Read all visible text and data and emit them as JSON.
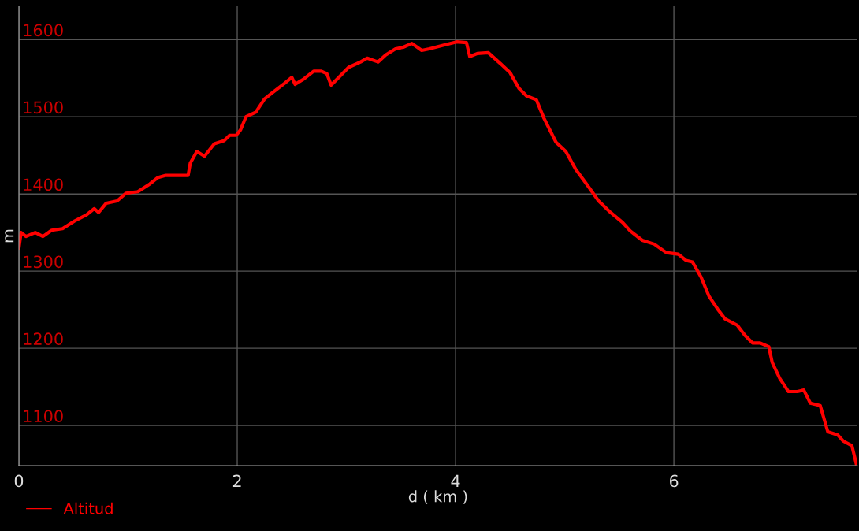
{
  "chart_data": {
    "type": "line",
    "xlabel": "d ( km )",
    "ylabel": "m",
    "xlim": [
      0,
      7.68
    ],
    "ylim": [
      1048,
      1643
    ],
    "xticks": [
      0,
      2,
      4,
      6
    ],
    "yticks": [
      1100,
      1200,
      1300,
      1400,
      1500,
      1600
    ],
    "grid": true,
    "legend": "bottom left",
    "marker": "none",
    "line_style": "solid",
    "series": [
      {
        "name": "Altitud",
        "color": "#ff0000",
        "x": [
          0,
          0.02,
          0.065,
          0.15,
          0.22,
          0.3,
          0.4,
          0.51,
          0.62,
          0.69,
          0.73,
          0.8,
          0.9,
          0.98,
          1.09,
          1.2,
          1.27,
          1.34,
          1.55,
          1.57,
          1.63,
          1.7,
          1.79,
          1.88,
          1.93,
          1.99,
          2.03,
          2.08,
          2.17,
          2.25,
          2.32,
          2.43,
          2.5,
          2.53,
          2.61,
          2.7,
          2.77,
          2.82,
          2.86,
          2.93,
          3.02,
          3.13,
          3.19,
          3.29,
          3.36,
          3.45,
          3.52,
          3.6,
          3.69,
          3.76,
          3.9,
          4.01,
          4.1,
          4.13,
          4.2,
          4.3,
          4.41,
          4.5,
          4.58,
          4.65,
          4.74,
          4.81,
          4.92,
          5.01,
          5.1,
          5.21,
          5.31,
          5.42,
          5.53,
          5.6,
          5.71,
          5.82,
          5.93,
          6.04,
          6.11,
          6.17,
          6.25,
          6.32,
          6.4,
          6.47,
          6.58,
          6.65,
          6.72,
          6.79,
          6.87,
          6.9,
          6.97,
          7.05,
          7.13,
          7.19,
          7.25,
          7.34,
          7.41,
          7.5,
          7.55,
          7.63,
          7.67
        ],
        "values": [
          1330,
          1350,
          1345,
          1350,
          1345,
          1353,
          1355,
          1365,
          1373,
          1381,
          1376,
          1388,
          1391,
          1401,
          1403,
          1413,
          1421,
          1424,
          1424,
          1440,
          1455,
          1449,
          1465,
          1469,
          1476,
          1476,
          1483,
          1500,
          1506,
          1523,
          1531,
          1543,
          1551,
          1542,
          1549,
          1559,
          1559,
          1556,
          1541,
          1551,
          1564,
          1571,
          1576,
          1571,
          1580,
          1588,
          1590,
          1595,
          1586,
          1588,
          1593,
          1597,
          1596,
          1578,
          1582,
          1583,
          1569,
          1557,
          1537,
          1527,
          1522,
          1498,
          1467,
          1455,
          1432,
          1411,
          1391,
          1376,
          1363,
          1352,
          1340,
          1335,
          1324,
          1322,
          1314,
          1312,
          1292,
          1268,
          1251,
          1238,
          1230,
          1217,
          1207,
          1207,
          1202,
          1182,
          1161,
          1144,
          1144,
          1146,
          1129,
          1126,
          1092,
          1088,
          1080,
          1074,
          1051
        ]
      }
    ]
  }
}
